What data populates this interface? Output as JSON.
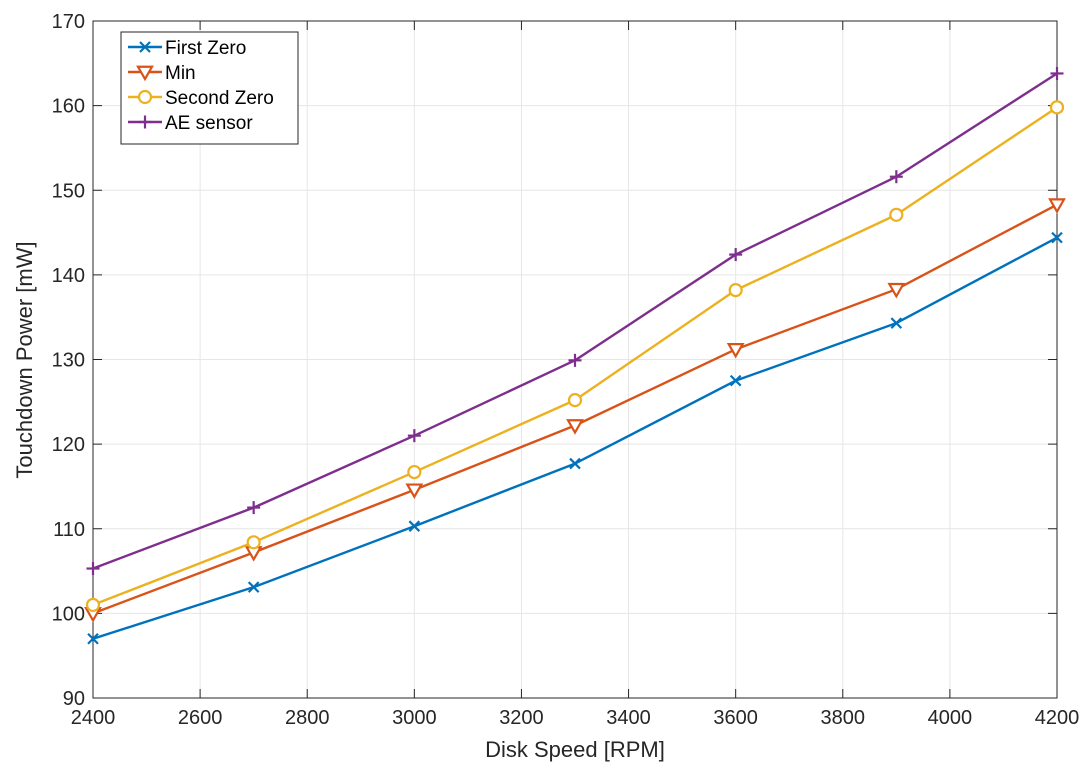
{
  "chart_data": {
    "type": "line",
    "title": "",
    "xlabel": "Disk Speed [RPM]",
    "ylabel": "Touchdown Power [mW]",
    "x": [
      2400,
      2700,
      3000,
      3300,
      3600,
      3900,
      4200
    ],
    "xlim": [
      2400,
      4200
    ],
    "ylim": [
      90,
      170
    ],
    "xticks": [
      2400,
      2600,
      2800,
      3000,
      3200,
      3400,
      3600,
      3800,
      4000,
      4200
    ],
    "yticks": [
      90,
      100,
      110,
      120,
      130,
      140,
      150,
      160,
      170
    ],
    "grid": true,
    "legend_position": "top-left",
    "series": [
      {
        "name": "First Zero",
        "color": "#0072BD",
        "marker": "x-mark",
        "values": [
          97.0,
          103.1,
          110.3,
          117.7,
          127.5,
          134.3,
          144.4
        ]
      },
      {
        "name": "Min",
        "color": "#D95319",
        "marker": "down-triangle",
        "values": [
          100.0,
          107.2,
          114.6,
          122.2,
          131.2,
          138.3,
          148.3
        ]
      },
      {
        "name": "Second Zero",
        "color": "#EDB120",
        "marker": "circle",
        "values": [
          101.0,
          108.4,
          116.7,
          125.2,
          138.2,
          147.1,
          159.8
        ]
      },
      {
        "name": "AE sensor",
        "color": "#7E2F8E",
        "marker": "plus",
        "values": [
          105.3,
          112.5,
          121.0,
          129.9,
          142.4,
          151.6,
          163.8
        ]
      }
    ]
  }
}
